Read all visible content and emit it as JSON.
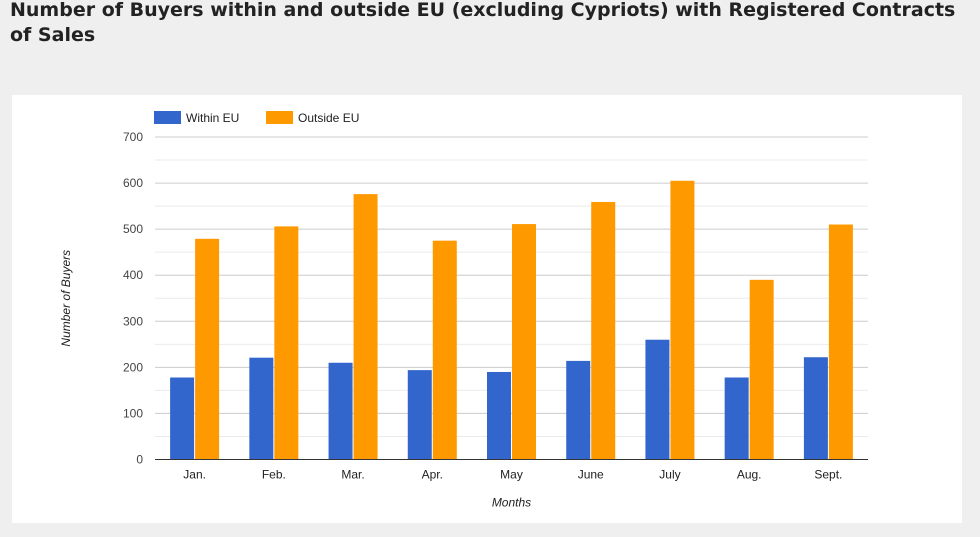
{
  "chart_data": {
    "type": "bar",
    "title": "Number of Buyers within and outside EU (excluding Cypriots) with Registered Contracts of Sales",
    "xlabel": "Months",
    "ylabel": "Number of Buyers",
    "ylim": [
      0,
      700
    ],
    "yticks": [
      0,
      100,
      200,
      300,
      400,
      500,
      600,
      700
    ],
    "grid": true,
    "legend_position": "top-left",
    "categories": [
      "Jan.",
      "Feb.",
      "Mar.",
      "Apr.",
      "May",
      "June",
      "July",
      "Aug.",
      "Sept."
    ],
    "series": [
      {
        "name": "Within EU",
        "color": "#3366cc",
        "values": [
          178,
          221,
          210,
          194,
          190,
          214,
          260,
          178,
          222
        ]
      },
      {
        "name": "Outside EU",
        "color": "#ff9900",
        "values": [
          479,
          506,
          576,
          475,
          511,
          559,
          605,
          390,
          510
        ]
      }
    ]
  }
}
